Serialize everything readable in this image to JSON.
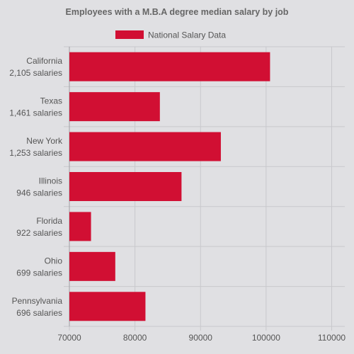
{
  "chart_data": {
    "type": "bar",
    "orientation": "horizontal",
    "title": "Employees with a M.B.A degree median salary by job",
    "legend": {
      "position": "top-center",
      "label": "National Salary Data"
    },
    "categories": [
      [
        "California",
        "2,105 salaries"
      ],
      [
        "Texas",
        "1,461 salaries"
      ],
      [
        "New York",
        "1,253 salaries"
      ],
      [
        "Illinois",
        "946 salaries"
      ],
      [
        "Florida",
        "922 salaries"
      ],
      [
        "Ohio",
        "699 salaries"
      ],
      [
        "Pennsylvania",
        "696 salaries"
      ]
    ],
    "series": [
      {
        "name": "National Salary Data",
        "color": "#d10f33",
        "values": [
          100600,
          83800,
          93100,
          87100,
          73300,
          77000,
          81600
        ]
      }
    ],
    "xlim": [
      70000,
      112000
    ],
    "xticks": [
      70000,
      80000,
      90000,
      100000,
      110000
    ],
    "grid": true
  }
}
